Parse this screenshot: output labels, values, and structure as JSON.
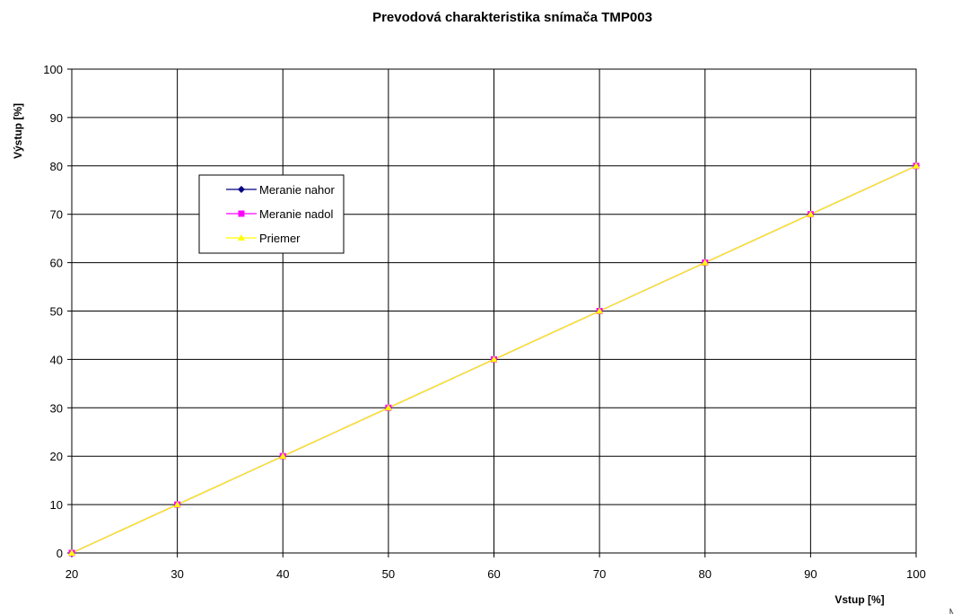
{
  "chart_data": {
    "type": "line",
    "title": "Prevodová charakteristika snímača TMP003",
    "xlabel": "Vstup [%]",
    "ylabel": "Výstup [%]",
    "xlim": [
      20,
      100
    ],
    "ylim": [
      0,
      100
    ],
    "x_ticks": [
      20,
      30,
      40,
      50,
      60,
      70,
      80,
      90,
      100
    ],
    "y_ticks": [
      0,
      10,
      20,
      30,
      40,
      50,
      60,
      70,
      80,
      90,
      100
    ],
    "grid": true,
    "legend_position": "upper-left",
    "x": [
      20,
      30,
      40,
      50,
      60,
      70,
      80,
      90,
      100
    ],
    "series": [
      {
        "name": "Meranie nahor",
        "values": [
          0,
          10,
          20,
          30,
          40,
          50,
          60,
          70,
          80
        ],
        "color": "#000080",
        "marker": "diamond"
      },
      {
        "name": "Meranie nadol",
        "values": [
          0,
          10,
          20,
          30,
          40,
          50,
          60,
          70,
          80
        ],
        "color": "#ff00ff",
        "marker": "square"
      },
      {
        "name": "Priemer",
        "values": [
          0,
          10,
          20,
          30,
          40,
          50,
          60,
          70,
          80
        ],
        "color": "#ffff00",
        "marker": "triangle"
      }
    ]
  }
}
